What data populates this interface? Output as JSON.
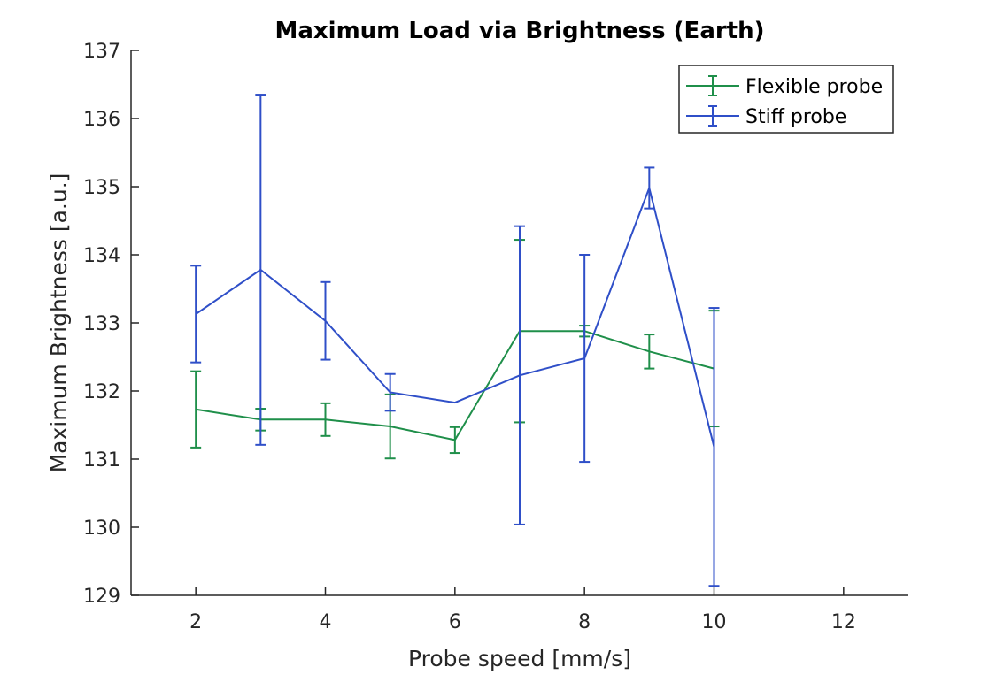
{
  "chart_data": {
    "type": "line",
    "title": "Maximum Load via Brightness (Earth)",
    "xlabel": "Probe speed [mm/s]",
    "ylabel": "Maximum Brightness [a.u.]",
    "xlim": [
      1,
      13
    ],
    "ylim": [
      129,
      137
    ],
    "xticks": [
      2,
      4,
      6,
      8,
      10,
      12
    ],
    "yticks": [
      129,
      130,
      131,
      132,
      133,
      134,
      135,
      136,
      137
    ],
    "grid": false,
    "legend_position": "top-right",
    "series": [
      {
        "name": "Flexible probe",
        "color": "#1f8f4a",
        "x": [
          2,
          3,
          4,
          5,
          6,
          7,
          8,
          9,
          10
        ],
        "y": [
          131.73,
          131.58,
          131.58,
          131.48,
          131.28,
          132.88,
          132.88,
          132.58,
          132.33
        ],
        "err": [
          0.56,
          0.16,
          0.24,
          0.47,
          0.19,
          1.34,
          0.08,
          0.25,
          0.85
        ]
      },
      {
        "name": "Stiff probe",
        "color": "#2f4fc8",
        "x": [
          2,
          3,
          4,
          5,
          6,
          7,
          8,
          9,
          10
        ],
        "y": [
          133.13,
          133.78,
          133.03,
          131.98,
          131.83,
          132.23,
          132.48,
          134.98,
          131.18
        ],
        "err": [
          0.71,
          2.57,
          0.57,
          0.27,
          0.0,
          2.19,
          1.52,
          0.3,
          2.04
        ]
      }
    ]
  }
}
